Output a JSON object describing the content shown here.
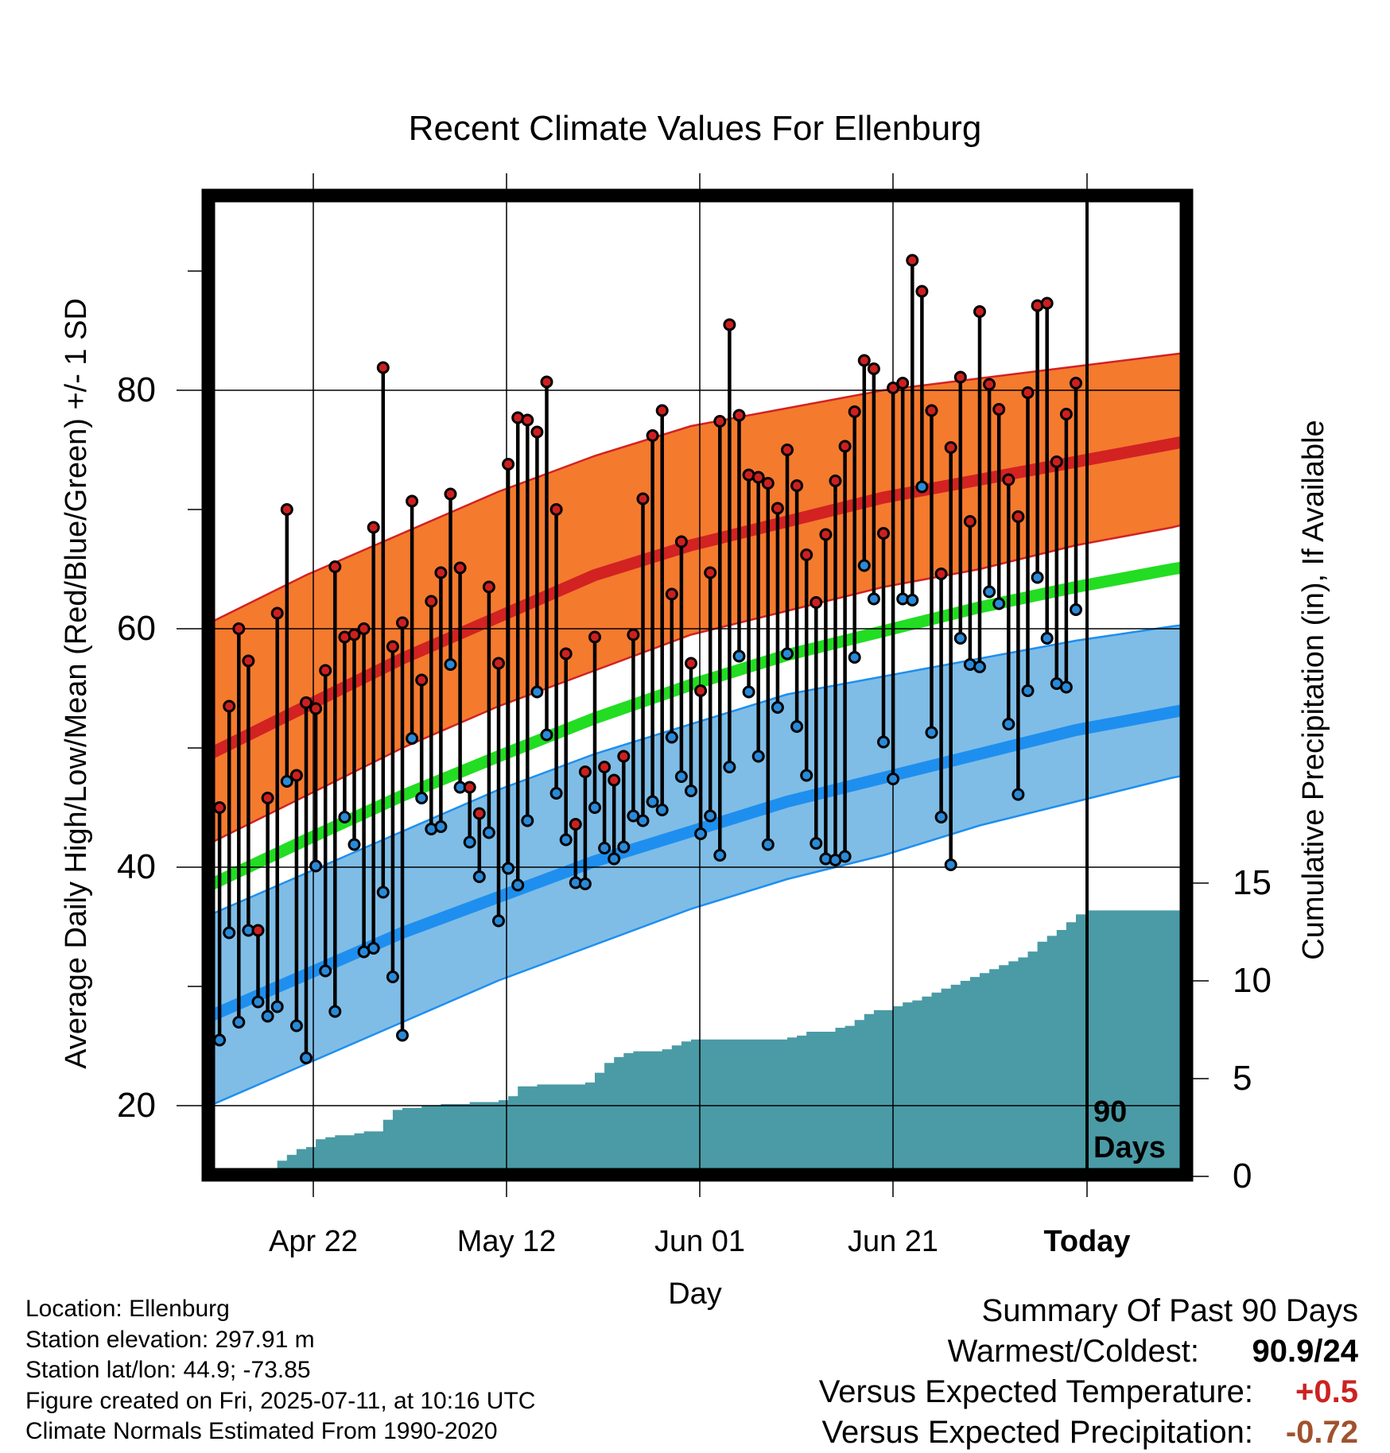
{
  "chart_data": {
    "type": "line",
    "title": "Recent Climate Values For Ellenburg",
    "xlabel": "Day",
    "ylabel": "Average Daily High/Low/Mean (Red/Blue/Green) +/- 1 SD",
    "ylabel_right": "Cumulative Precipitation (in), If Available",
    "x_ticks": [
      "Apr 22",
      "May 12",
      "Jun 01",
      "Jun 21",
      "Today"
    ],
    "y_ticks": [
      "20",
      "40",
      "60",
      "80"
    ],
    "y_ticks_right": [
      "0",
      "5",
      "10",
      "15"
    ],
    "ylim": [
      15,
      97
    ],
    "ylim_right": [
      0,
      40
    ],
    "today_label": "90\nDays",
    "normals": {
      "high_mean": [
        [
          0,
          49.5
        ],
        [
          10,
          53.5
        ],
        [
          20,
          57.5
        ],
        [
          30,
          61
        ],
        [
          40,
          64.5
        ],
        [
          50,
          67
        ],
        [
          60,
          69
        ],
        [
          70,
          71
        ],
        [
          80,
          72.5
        ],
        [
          90,
          74
        ],
        [
          100,
          75.5
        ],
        [
          110,
          77
        ],
        [
          120,
          78
        ],
        [
          130,
          78.5
        ],
        [
          140,
          78.5
        ]
      ],
      "high_upper": [
        [
          0,
          60.5
        ],
        [
          10,
          64.5
        ],
        [
          20,
          68
        ],
        [
          30,
          71.5
        ],
        [
          40,
          74.5
        ],
        [
          50,
          77
        ],
        [
          60,
          78.5
        ],
        [
          70,
          80
        ],
        [
          80,
          81
        ],
        [
          90,
          82
        ],
        [
          100,
          83
        ],
        [
          110,
          84
        ],
        [
          120,
          84.5
        ],
        [
          130,
          84.5
        ],
        [
          140,
          84.2
        ]
      ],
      "high_lower": [
        [
          0,
          42
        ],
        [
          10,
          46
        ],
        [
          20,
          50
        ],
        [
          30,
          53.5
        ],
        [
          40,
          56.5
        ],
        [
          50,
          59.5
        ],
        [
          60,
          61.5
        ],
        [
          70,
          63.5
        ],
        [
          80,
          65
        ],
        [
          90,
          67
        ],
        [
          100,
          68.5
        ],
        [
          110,
          70.5
        ],
        [
          120,
          71.8
        ],
        [
          130,
          72.7
        ],
        [
          140,
          73
        ]
      ],
      "mean": [
        [
          0,
          38.5
        ],
        [
          10,
          42.3
        ],
        [
          20,
          46
        ],
        [
          30,
          49.3
        ],
        [
          40,
          52.5
        ],
        [
          50,
          55.3
        ],
        [
          60,
          57.8
        ],
        [
          70,
          59.8
        ],
        [
          80,
          61.8
        ],
        [
          90,
          63.5
        ],
        [
          100,
          65
        ],
        [
          110,
          66.2
        ],
        [
          120,
          66.9
        ],
        [
          130,
          67.3
        ],
        [
          140,
          67.3
        ]
      ],
      "low_mean": [
        [
          0,
          27.5
        ],
        [
          10,
          31
        ],
        [
          20,
          34.5
        ],
        [
          30,
          37.5
        ],
        [
          40,
          40.5
        ],
        [
          50,
          43
        ],
        [
          60,
          45.5
        ],
        [
          70,
          47.5
        ],
        [
          80,
          49.5
        ],
        [
          90,
          51.5
        ],
        [
          100,
          53
        ],
        [
          110,
          54.5
        ],
        [
          120,
          55.3
        ],
        [
          130,
          55.8
        ],
        [
          140,
          55.8
        ]
      ],
      "low_upper": [
        [
          0,
          36
        ],
        [
          10,
          39.5
        ],
        [
          20,
          43
        ],
        [
          30,
          46.5
        ],
        [
          40,
          49.5
        ],
        [
          50,
          52
        ],
        [
          60,
          54.5
        ],
        [
          70,
          56
        ],
        [
          80,
          57.5
        ],
        [
          90,
          59
        ],
        [
          100,
          60.2
        ],
        [
          110,
          61.2
        ],
        [
          120,
          61.8
        ],
        [
          130,
          62.1
        ],
        [
          140,
          62.2
        ]
      ],
      "low_lower": [
        [
          0,
          20
        ],
        [
          10,
          23.5
        ],
        [
          20,
          27
        ],
        [
          30,
          30.5
        ],
        [
          40,
          33.5
        ],
        [
          50,
          36.5
        ],
        [
          60,
          39
        ],
        [
          70,
          41
        ],
        [
          80,
          43.5
        ],
        [
          90,
          45.5
        ],
        [
          100,
          47.5
        ],
        [
          110,
          49
        ],
        [
          120,
          49.8
        ],
        [
          130,
          50
        ],
        [
          140,
          50.1
        ]
      ]
    },
    "daily": [
      {
        "day": 1,
        "high": 45,
        "low": 25.5
      },
      {
        "day": 2,
        "high": 53.5,
        "low": 34.5
      },
      {
        "day": 3,
        "high": 60,
        "low": 27
      },
      {
        "day": 4,
        "high": 57.3,
        "low": 34.7
      },
      {
        "day": 5,
        "high": 34.7,
        "low": 28.7
      },
      {
        "day": 6,
        "high": 45.8,
        "low": 27.5
      },
      {
        "day": 7,
        "high": 61.3,
        "low": 28.3
      },
      {
        "day": 8,
        "high": 70,
        "low": 47.2
      },
      {
        "day": 9,
        "high": 47.7,
        "low": 26.7
      },
      {
        "day": 10,
        "high": 53.8,
        "low": 24
      },
      {
        "day": 11,
        "high": 53.3,
        "low": 40.1
      },
      {
        "day": 12,
        "high": 56.5,
        "low": 31.3
      },
      {
        "day": 13,
        "high": 65.2,
        "low": 27.9
      },
      {
        "day": 14,
        "high": 59.3,
        "low": 44.2
      },
      {
        "day": 15,
        "high": 59.5,
        "low": 41.9
      },
      {
        "day": 16,
        "high": 60,
        "low": 32.9
      },
      {
        "day": 17,
        "high": 68.5,
        "low": 33.2
      },
      {
        "day": 18,
        "high": 81.9,
        "low": 37.9
      },
      {
        "day": 19,
        "high": 58.5,
        "low": 30.8
      },
      {
        "day": 20,
        "high": 60.5,
        "low": 25.9
      },
      {
        "day": 21,
        "high": 70.7,
        "low": 50.8
      },
      {
        "day": 22,
        "high": 55.7,
        "low": 45.8
      },
      {
        "day": 23,
        "high": 62.3,
        "low": 43.2
      },
      {
        "day": 24,
        "high": 64.7,
        "low": 43.4
      },
      {
        "day": 25,
        "high": 71.3,
        "low": 57
      },
      {
        "day": 26,
        "high": 65.1,
        "low": 46.7
      },
      {
        "day": 27,
        "high": 46.7,
        "low": 42.1
      },
      {
        "day": 28,
        "high": 44.5,
        "low": 39.2
      },
      {
        "day": 29,
        "high": 63.5,
        "low": 42.9
      },
      {
        "day": 30,
        "high": 57.1,
        "low": 35.5
      },
      {
        "day": 31,
        "high": 73.8,
        "low": 39.9
      },
      {
        "day": 32,
        "high": 77.7,
        "low": 38.5
      },
      {
        "day": 33,
        "high": 77.5,
        "low": 43.9
      },
      {
        "day": 34,
        "high": 76.5,
        "low": 54.7
      },
      {
        "day": 35,
        "high": 80.7,
        "low": 51.1
      },
      {
        "day": 36,
        "high": 70,
        "low": 46.2
      },
      {
        "day": 37,
        "high": 57.9,
        "low": 42.3
      },
      {
        "day": 38,
        "high": 43.6,
        "low": 38.7
      },
      {
        "day": 39,
        "high": 48,
        "low": 38.6
      },
      {
        "day": 40,
        "high": 59.3,
        "low": 45
      },
      {
        "day": 41,
        "high": 48.4,
        "low": 41.6
      },
      {
        "day": 42,
        "high": 47.3,
        "low": 40.7
      },
      {
        "day": 43,
        "high": 49.3,
        "low": 41.7
      },
      {
        "day": 44,
        "high": 59.5,
        "low": 44.3
      },
      {
        "day": 45,
        "high": 70.9,
        "low": 43.9
      },
      {
        "day": 46,
        "high": 76.2,
        "low": 45.5
      },
      {
        "day": 47,
        "high": 78.3,
        "low": 44.8
      },
      {
        "day": 48,
        "high": 62.9,
        "low": 50.9
      },
      {
        "day": 49,
        "high": 67.3,
        "low": 47.6
      },
      {
        "day": 50,
        "high": 57.1,
        "low": 46.4
      },
      {
        "day": 51,
        "high": 54.8,
        "low": 42.8
      },
      {
        "day": 52,
        "high": 64.7,
        "low": 44.3
      },
      {
        "day": 53,
        "high": 77.4,
        "low": 41
      },
      {
        "day": 54,
        "high": 85.5,
        "low": 48.4
      },
      {
        "day": 55,
        "high": 77.9,
        "low": 57.7
      },
      {
        "day": 56,
        "high": 72.9,
        "low": 54.7
      },
      {
        "day": 57,
        "high": 72.7,
        "low": 49.3
      },
      {
        "day": 58,
        "high": 72.2,
        "low": 41.9
      },
      {
        "day": 59,
        "high": 70.1,
        "low": 53.4
      },
      {
        "day": 60,
        "high": 75,
        "low": 57.9
      },
      {
        "day": 61,
        "high": 72,
        "low": 51.8
      },
      {
        "day": 62,
        "high": 66.2,
        "low": 47.7
      },
      {
        "day": 63,
        "high": 62.2,
        "low": 42
      },
      {
        "day": 64,
        "high": 67.9,
        "low": 40.7
      },
      {
        "day": 65,
        "high": 72.4,
        "low": 40.6
      },
      {
        "day": 66,
        "high": 75.3,
        "low": 40.9
      },
      {
        "day": 67,
        "high": 78.2,
        "low": 57.6
      },
      {
        "day": 68,
        "high": 82.5,
        "low": 65.3
      },
      {
        "day": 69,
        "high": 81.8,
        "low": 62.5
      },
      {
        "day": 70,
        "high": 68,
        "low": 50.5
      },
      {
        "day": 71,
        "high": 80.2,
        "low": 47.4
      },
      {
        "day": 72,
        "high": 80.6,
        "low": 62.5
      },
      {
        "day": 73,
        "high": 90.9,
        "low": 62.4
      },
      {
        "day": 74,
        "high": 88.3,
        "low": 71.9
      },
      {
        "day": 75,
        "high": 78.3,
        "low": 51.3
      },
      {
        "day": 76,
        "high": 64.6,
        "low": 44.2
      },
      {
        "day": 77,
        "high": 75.2,
        "low": 40.2
      },
      {
        "day": 78,
        "high": 81.1,
        "low": 59.2
      },
      {
        "day": 79,
        "high": 69,
        "low": 57
      },
      {
        "day": 80,
        "high": 86.6,
        "low": 56.8
      },
      {
        "day": 81,
        "high": 80.5,
        "low": 63.1
      },
      {
        "day": 82,
        "high": 78.4,
        "low": 62.1
      },
      {
        "day": 83,
        "high": 72.5,
        "low": 52
      },
      {
        "day": 84,
        "high": 69.4,
        "low": 46.1
      },
      {
        "day": 85,
        "high": 79.8,
        "low": 54.8
      },
      {
        "day": 86,
        "high": 87.1,
        "low": 64.3
      },
      {
        "day": 87,
        "high": 87.3,
        "low": 59.2
      },
      {
        "day": 88,
        "high": 74,
        "low": 55.4
      },
      {
        "day": 89,
        "high": 78,
        "low": 55.1
      },
      {
        "day": 90,
        "high": 80.6,
        "low": 61.6
      }
    ],
    "precip_cumulative": [
      [
        0,
        0
      ],
      [
        3,
        0
      ],
      [
        4,
        0.1
      ],
      [
        5,
        0.2
      ],
      [
        6,
        0.3
      ],
      [
        7,
        0.8
      ],
      [
        8,
        1.1
      ],
      [
        9,
        1.4
      ],
      [
        10,
        1.5
      ],
      [
        11,
        1.9
      ],
      [
        12,
        2
      ],
      [
        13,
        2.1
      ],
      [
        14,
        2.1
      ],
      [
        15,
        2.2
      ],
      [
        16,
        2.3
      ],
      [
        17,
        2.3
      ],
      [
        18,
        2.9
      ],
      [
        19,
        3.4
      ],
      [
        20,
        3.5
      ],
      [
        21,
        3.5
      ],
      [
        22,
        3.6
      ],
      [
        23,
        3.6
      ],
      [
        24,
        3.7
      ],
      [
        25,
        3.7
      ],
      [
        26,
        3.7
      ],
      [
        27,
        3.8
      ],
      [
        28,
        3.8
      ],
      [
        29,
        3.8
      ],
      [
        30,
        3.9
      ],
      [
        31,
        4.1
      ],
      [
        32,
        4.6
      ],
      [
        33,
        4.6
      ],
      [
        34,
        4.7
      ],
      [
        35,
        4.7
      ],
      [
        36,
        4.7
      ],
      [
        37,
        4.7
      ],
      [
        38,
        4.7
      ],
      [
        39,
        4.8
      ],
      [
        40,
        5.3
      ],
      [
        41,
        5.8
      ],
      [
        42,
        6.1
      ],
      [
        43,
        6.3
      ],
      [
        44,
        6.4
      ],
      [
        45,
        6.4
      ],
      [
        46,
        6.4
      ],
      [
        47,
        6.5
      ],
      [
        48,
        6.7
      ],
      [
        49,
        6.9
      ],
      [
        50,
        7
      ],
      [
        51,
        7
      ],
      [
        52,
        7
      ],
      [
        53,
        7
      ],
      [
        54,
        7
      ],
      [
        55,
        7
      ],
      [
        56,
        7
      ],
      [
        57,
        7
      ],
      [
        58,
        7
      ],
      [
        59,
        7
      ],
      [
        60,
        7.1
      ],
      [
        61,
        7.2
      ],
      [
        62,
        7.4
      ],
      [
        63,
        7.4
      ],
      [
        64,
        7.4
      ],
      [
        65,
        7.6
      ],
      [
        66,
        7.7
      ],
      [
        67,
        8
      ],
      [
        68,
        8.3
      ],
      [
        69,
        8.5
      ],
      [
        70,
        8.5
      ],
      [
        71,
        8.7
      ],
      [
        72,
        8.9
      ],
      [
        73,
        9
      ],
      [
        74,
        9.2
      ],
      [
        75,
        9.4
      ],
      [
        76,
        9.6
      ],
      [
        77,
        9.8
      ],
      [
        78,
        10
      ],
      [
        79,
        10.2
      ],
      [
        80,
        10.4
      ],
      [
        81,
        10.6
      ],
      [
        82,
        10.8
      ],
      [
        83,
        11
      ],
      [
        84,
        11.2
      ],
      [
        85,
        11.5
      ],
      [
        86,
        12
      ],
      [
        87,
        12.3
      ],
      [
        88,
        12.6
      ],
      [
        89,
        13
      ],
      [
        90,
        13.4
      ],
      [
        91,
        13.6
      ],
      [
        95,
        13.6
      ],
      [
        100,
        13.6
      ],
      [
        105,
        13.6
      ],
      [
        110,
        13.6
      ],
      [
        115,
        13.6
      ],
      [
        120,
        13.6
      ],
      [
        125,
        13.6
      ],
      [
        130,
        13.6
      ],
      [
        135,
        13.6
      ],
      [
        140,
        13.6
      ]
    ],
    "colors": {
      "high_band": "#f47a2e",
      "high_line": "#d22222",
      "mean_line": "#22dd22",
      "low_band": "#7fbde6",
      "low_line": "#1e8fef",
      "precip": "#4a9ba6",
      "high_dot": "#cc2020",
      "low_dot": "#2a8ad8"
    }
  },
  "footer": {
    "location": "Location: Ellenburg",
    "elevation": "Station elevation: 297.91 m",
    "latlon": "Station lat/lon: 44.9; -73.85",
    "created": "Figure created on Fri, 2025-07-11, at 10:16 UTC",
    "normals": "Climate Normals Estimated From 1990-2020"
  },
  "summary": {
    "title": "Summary Of Past 90 Days",
    "warmest_coldest_label": "Warmest/Coldest:",
    "warmest_coldest_value": "90.9/24",
    "vs_temp_label": "Versus Expected Temperature:",
    "vs_temp_value": "+0.5",
    "vs_temp_color": "#cc2222",
    "vs_precip_label": "Versus Expected Precipitation:",
    "vs_precip_value": "-0.72",
    "vs_precip_color": "#a0522d"
  }
}
